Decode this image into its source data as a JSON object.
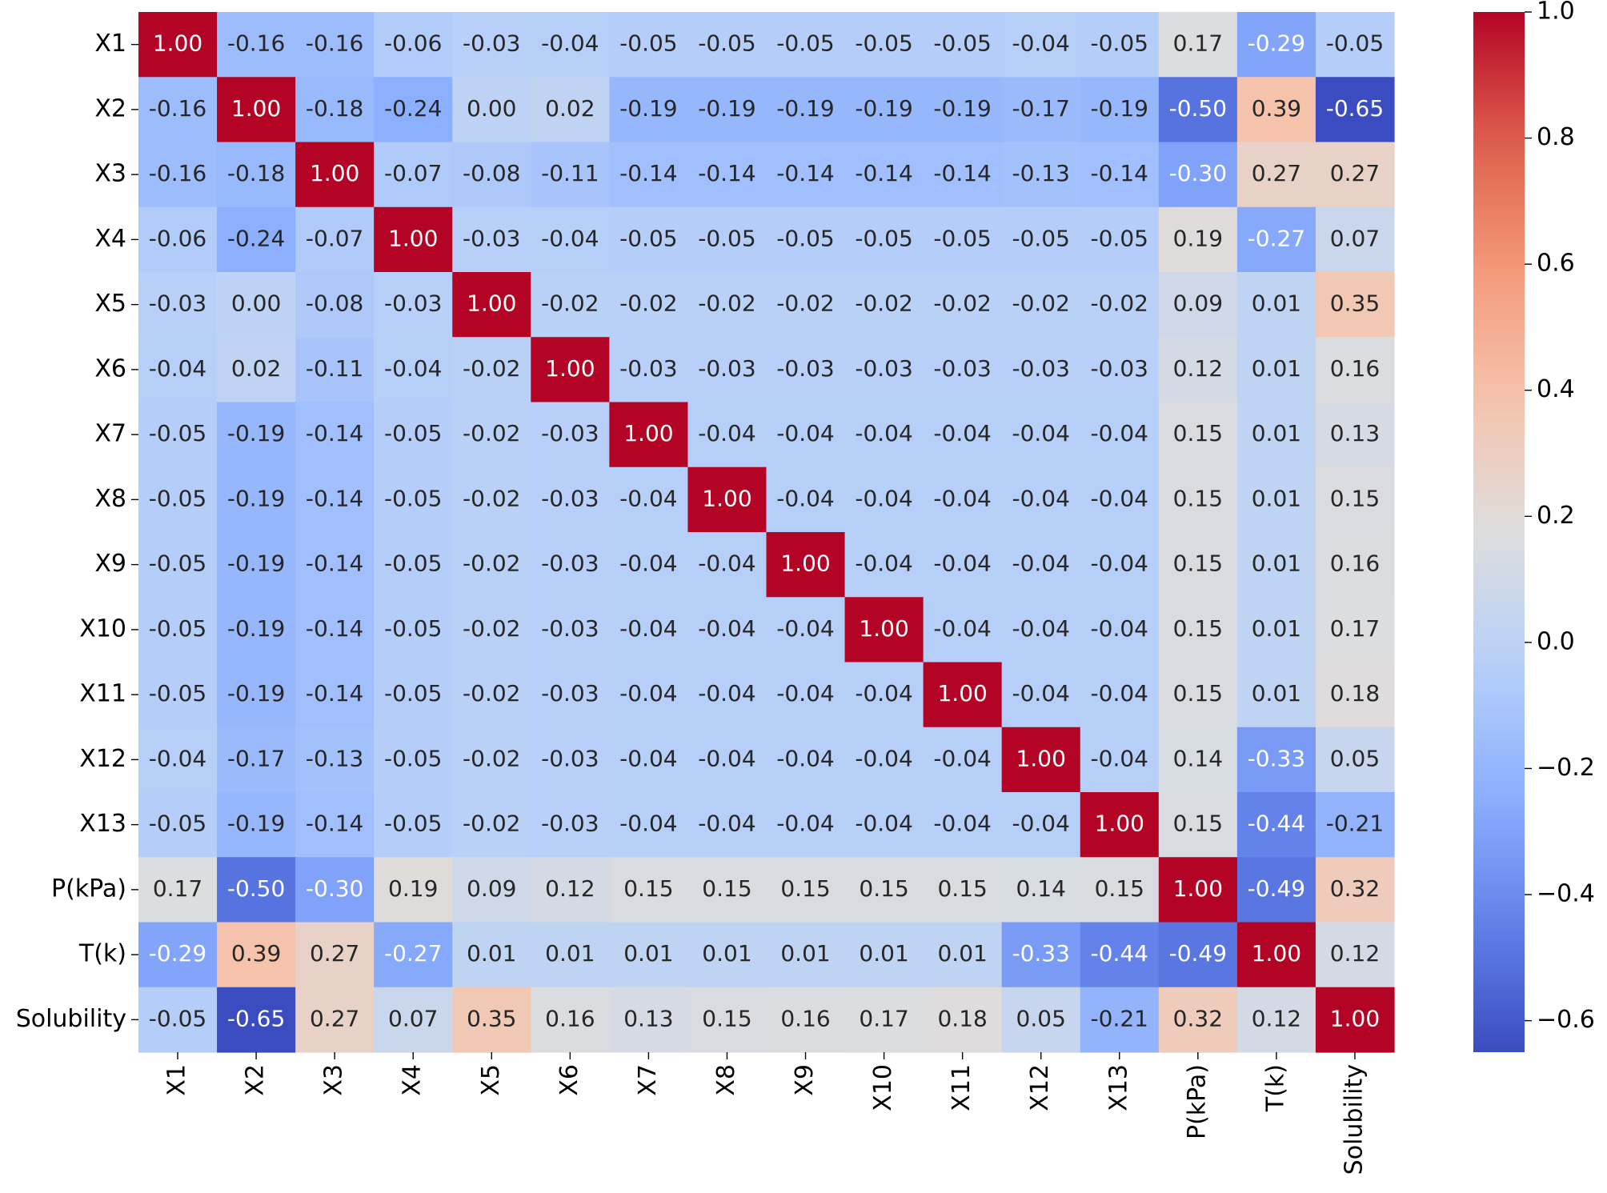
{
  "chart_data": {
    "type": "heatmap",
    "colormap": "coolwarm",
    "categories": [
      "X1",
      "X2",
      "X3",
      "X4",
      "X5",
      "X6",
      "X7",
      "X8",
      "X9",
      "X10",
      "X11",
      "X12",
      "X13",
      "P(kPa)",
      "T(k)",
      "Solubility"
    ],
    "values": [
      [
        1,
        -0.16,
        -0.16,
        -0.06,
        -0.03,
        -0.04,
        -0.05,
        -0.05,
        -0.05,
        -0.05,
        -0.05,
        -0.04,
        -0.05,
        0.17,
        -0.29,
        -0.05
      ],
      [
        -0.16,
        1,
        -0.18,
        -0.24,
        0,
        0.02,
        -0.19,
        -0.19,
        -0.19,
        -0.19,
        -0.19,
        -0.17,
        -0.19,
        -0.5,
        0.39,
        -0.65
      ],
      [
        -0.16,
        -0.18,
        1,
        -0.07,
        -0.08,
        -0.11,
        -0.14,
        -0.14,
        -0.14,
        -0.14,
        -0.14,
        -0.13,
        -0.14,
        -0.3,
        0.27,
        0.27
      ],
      [
        -0.06,
        -0.24,
        -0.07,
        1,
        -0.03,
        -0.04,
        -0.05,
        -0.05,
        -0.05,
        -0.05,
        -0.05,
        -0.05,
        -0.05,
        0.19,
        -0.27,
        0.07
      ],
      [
        -0.03,
        0,
        -0.08,
        -0.03,
        1,
        -0.02,
        -0.02,
        -0.02,
        -0.02,
        -0.02,
        -0.02,
        -0.02,
        -0.02,
        0.09,
        0.01,
        0.35
      ],
      [
        -0.04,
        0.02,
        -0.11,
        -0.04,
        -0.02,
        1,
        -0.03,
        -0.03,
        -0.03,
        -0.03,
        -0.03,
        -0.03,
        -0.03,
        0.12,
        0.01,
        0.16
      ],
      [
        -0.05,
        -0.19,
        -0.14,
        -0.05,
        -0.02,
        -0.03,
        1,
        -0.04,
        -0.04,
        -0.04,
        -0.04,
        -0.04,
        -0.04,
        0.15,
        0.01,
        0.13
      ],
      [
        -0.05,
        -0.19,
        -0.14,
        -0.05,
        -0.02,
        -0.03,
        -0.04,
        1,
        -0.04,
        -0.04,
        -0.04,
        -0.04,
        -0.04,
        0.15,
        0.01,
        0.15
      ],
      [
        -0.05,
        -0.19,
        -0.14,
        -0.05,
        -0.02,
        -0.03,
        -0.04,
        -0.04,
        1,
        -0.04,
        -0.04,
        -0.04,
        -0.04,
        0.15,
        0.01,
        0.16
      ],
      [
        -0.05,
        -0.19,
        -0.14,
        -0.05,
        -0.02,
        -0.03,
        -0.04,
        -0.04,
        -0.04,
        1,
        -0.04,
        -0.04,
        -0.04,
        0.15,
        0.01,
        0.17
      ],
      [
        -0.05,
        -0.19,
        -0.14,
        -0.05,
        -0.02,
        -0.03,
        -0.04,
        -0.04,
        -0.04,
        -0.04,
        1,
        -0.04,
        -0.04,
        0.15,
        0.01,
        0.18
      ],
      [
        -0.04,
        -0.17,
        -0.13,
        -0.05,
        -0.02,
        -0.03,
        -0.04,
        -0.04,
        -0.04,
        -0.04,
        -0.04,
        1,
        -0.04,
        0.14,
        -0.33,
        0.05
      ],
      [
        -0.05,
        -0.19,
        -0.14,
        -0.05,
        -0.02,
        -0.03,
        -0.04,
        -0.04,
        -0.04,
        -0.04,
        -0.04,
        -0.04,
        1,
        0.15,
        -0.44,
        -0.21
      ],
      [
        0.17,
        -0.5,
        -0.3,
        0.19,
        0.09,
        0.12,
        0.15,
        0.15,
        0.15,
        0.15,
        0.15,
        0.14,
        0.15,
        1,
        -0.49,
        0.32
      ],
      [
        -0.29,
        0.39,
        0.27,
        -0.27,
        0.01,
        0.01,
        0.01,
        0.01,
        0.01,
        0.01,
        0.01,
        -0.33,
        -0.44,
        -0.49,
        1,
        0.12
      ],
      [
        -0.05,
        -0.65,
        0.27,
        0.07,
        0.35,
        0.16,
        0.13,
        0.15,
        0.16,
        0.17,
        0.18,
        0.05,
        -0.21,
        0.32,
        0.12,
        1
      ]
    ],
    "value_labels": [
      [
        "1.00",
        "-0.16",
        "-0.16",
        "-0.06",
        "-0.03",
        "-0.04",
        "-0.05",
        "-0.05",
        "-0.05",
        "-0.05",
        "-0.05",
        "-0.04",
        "-0.05",
        "0.17",
        "-0.29",
        "-0.05"
      ],
      [
        "-0.16",
        "1.00",
        "-0.18",
        "-0.24",
        "0.00",
        "0.02",
        "-0.19",
        "-0.19",
        "-0.19",
        "-0.19",
        "-0.19",
        "-0.17",
        "-0.19",
        "-0.50",
        "0.39",
        "-0.65"
      ],
      [
        "-0.16",
        "-0.18",
        "1.00",
        "-0.07",
        "-0.08",
        "-0.11",
        "-0.14",
        "-0.14",
        "-0.14",
        "-0.14",
        "-0.14",
        "-0.13",
        "-0.14",
        "-0.30",
        "0.27",
        "0.27"
      ],
      [
        "-0.06",
        "-0.24",
        "-0.07",
        "1.00",
        "-0.03",
        "-0.04",
        "-0.05",
        "-0.05",
        "-0.05",
        "-0.05",
        "-0.05",
        "-0.05",
        "-0.05",
        "0.19",
        "-0.27",
        "0.07"
      ],
      [
        "-0.03",
        "0.00",
        "-0.08",
        "-0.03",
        "1.00",
        "-0.02",
        "-0.02",
        "-0.02",
        "-0.02",
        "-0.02",
        "-0.02",
        "-0.02",
        "-0.02",
        "0.09",
        "0.01",
        "0.35"
      ],
      [
        "-0.04",
        "0.02",
        "-0.11",
        "-0.04",
        "-0.02",
        "1.00",
        "-0.03",
        "-0.03",
        "-0.03",
        "-0.03",
        "-0.03",
        "-0.03",
        "-0.03",
        "0.12",
        "0.01",
        "0.16"
      ],
      [
        "-0.05",
        "-0.19",
        "-0.14",
        "-0.05",
        "-0.02",
        "-0.03",
        "1.00",
        "-0.04",
        "-0.04",
        "-0.04",
        "-0.04",
        "-0.04",
        "-0.04",
        "0.15",
        "0.01",
        "0.13"
      ],
      [
        "-0.05",
        "-0.19",
        "-0.14",
        "-0.05",
        "-0.02",
        "-0.03",
        "-0.04",
        "1.00",
        "-0.04",
        "-0.04",
        "-0.04",
        "-0.04",
        "-0.04",
        "0.15",
        "0.01",
        "0.15"
      ],
      [
        "-0.05",
        "-0.19",
        "-0.14",
        "-0.05",
        "-0.02",
        "-0.03",
        "-0.04",
        "-0.04",
        "1.00",
        "-0.04",
        "-0.04",
        "-0.04",
        "-0.04",
        "0.15",
        "0.01",
        "0.16"
      ],
      [
        "-0.05",
        "-0.19",
        "-0.14",
        "-0.05",
        "-0.02",
        "-0.03",
        "-0.04",
        "-0.04",
        "-0.04",
        "1.00",
        "-0.04",
        "-0.04",
        "-0.04",
        "0.15",
        "0.01",
        "0.17"
      ],
      [
        "-0.05",
        "-0.19",
        "-0.14",
        "-0.05",
        "-0.02",
        "-0.03",
        "-0.04",
        "-0.04",
        "-0.04",
        "-0.04",
        "1.00",
        "-0.04",
        "-0.04",
        "0.15",
        "0.01",
        "0.18"
      ],
      [
        "-0.04",
        "-0.17",
        "-0.13",
        "-0.05",
        "-0.02",
        "-0.03",
        "-0.04",
        "-0.04",
        "-0.04",
        "-0.04",
        "-0.04",
        "1.00",
        "-0.04",
        "0.14",
        "-0.33",
        "0.05"
      ],
      [
        "-0.05",
        "-0.19",
        "-0.14",
        "-0.05",
        "-0.02",
        "-0.03",
        "-0.04",
        "-0.04",
        "-0.04",
        "-0.04",
        "-0.04",
        "-0.04",
        "1.00",
        "0.15",
        "-0.44",
        "-0.21"
      ],
      [
        "0.17",
        "-0.50",
        "-0.30",
        "0.19",
        "0.09",
        "0.12",
        "0.15",
        "0.15",
        "0.15",
        "0.15",
        "0.15",
        "0.14",
        "0.15",
        "1.00",
        "-0.49",
        "0.32"
      ],
      [
        "-0.29",
        "0.39",
        "0.27",
        "-0.27",
        "0.01",
        "0.01",
        "0.01",
        "0.01",
        "0.01",
        "0.01",
        "0.01",
        "-0.33",
        "-0.44",
        "-0.49",
        "1.00",
        "0.12"
      ],
      [
        "-0.05",
        "-0.65",
        "0.27",
        "0.07",
        "0.35",
        "0.16",
        "0.13",
        "0.15",
        "0.16",
        "0.17",
        "0.18",
        "0.05",
        "-0.21",
        "0.32",
        "0.12",
        "1.00"
      ]
    ],
    "clim": [
      -0.65,
      1
    ],
    "cticks": [
      {
        "value": 1,
        "label": "1.0"
      },
      {
        "value": 0.8,
        "label": "0.8"
      },
      {
        "value": 0.6,
        "label": "0.6"
      },
      {
        "value": 0.4,
        "label": "0.4"
      },
      {
        "value": 0.2,
        "label": "0.2"
      },
      {
        "value": 0,
        "label": "0.0"
      },
      {
        "value": -0.2,
        "label": "−0.2"
      },
      {
        "value": -0.4,
        "label": "−0.4"
      },
      {
        "value": -0.6,
        "label": "−0.6"
      }
    ]
  }
}
